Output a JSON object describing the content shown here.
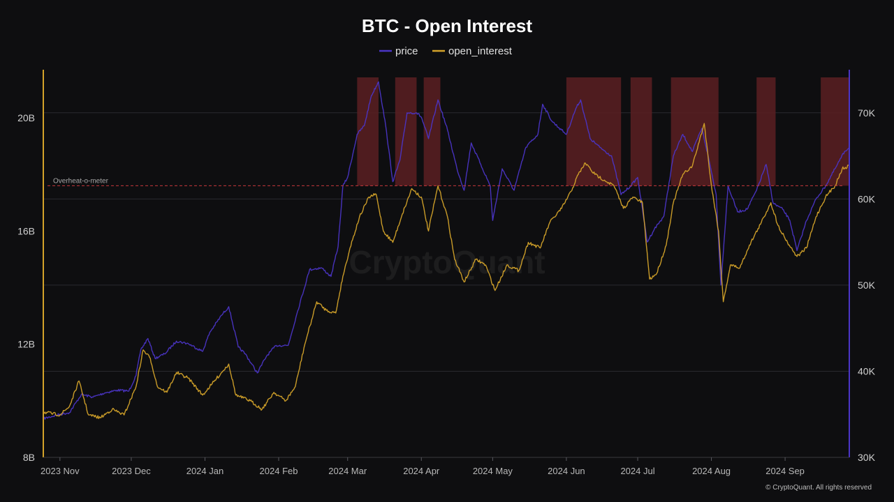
{
  "chart_data": {
    "type": "line",
    "title": "BTC - Open Interest",
    "legend": {
      "placement": "top-center",
      "entries": [
        "price",
        "open_interest"
      ]
    },
    "colors": {
      "price": "#4b35c6",
      "open_interest": "#d4a32a",
      "overheat_band": "#5a1f22",
      "threshold": "#c8383c",
      "background": "#0e0e10",
      "left_axis": "#d4a32a",
      "right_axis": "#4b35c6"
    },
    "x_axis": {
      "range": [
        "2023-10-25",
        "2024-09-28"
      ],
      "ticks": [
        {
          "date": "2023-11-01",
          "label": "2023 Nov"
        },
        {
          "date": "2023-12-01",
          "label": "2023 Dec"
        },
        {
          "date": "2024-01-01",
          "label": "2024 Jan"
        },
        {
          "date": "2024-02-01",
          "label": "2024 Feb"
        },
        {
          "date": "2024-03-01",
          "label": "2024 Mar"
        },
        {
          "date": "2024-04-01",
          "label": "2024 Apr"
        },
        {
          "date": "2024-05-01",
          "label": "2024 May"
        },
        {
          "date": "2024-06-01",
          "label": "2024 Jun"
        },
        {
          "date": "2024-07-01",
          "label": "2024 Jul"
        },
        {
          "date": "2024-08-01",
          "label": "2024 Aug"
        },
        {
          "date": "2024-09-01",
          "label": "2024 Sep"
        }
      ]
    },
    "y_left": {
      "series": "open_interest",
      "range": [
        8000000000,
        21700000000
      ],
      "ticks": [
        {
          "value": 8000000000,
          "label": "8B"
        },
        {
          "value": 12000000000,
          "label": "12B"
        },
        {
          "value": 16000000000,
          "label": "16B"
        },
        {
          "value": 20000000000,
          "label": "20B"
        }
      ]
    },
    "y_right": {
      "series": "price",
      "range": [
        30000,
        75000
      ],
      "ticks": [
        {
          "value": 30000,
          "label": "30K"
        },
        {
          "value": 40000,
          "label": "40K"
        },
        {
          "value": 50000,
          "label": "50K"
        },
        {
          "value": 60000,
          "label": "60K"
        },
        {
          "value": 70000,
          "label": "70K"
        }
      ]
    },
    "grid": true,
    "threshold": {
      "label": "Overheat-o-meter",
      "value": 17600000000
    },
    "overheat_bands": [
      {
        "start": "2024-03-05",
        "end": "2024-03-14"
      },
      {
        "start": "2024-03-21",
        "end": "2024-03-30"
      },
      {
        "start": "2024-04-02",
        "end": "2024-04-09"
      },
      {
        "start": "2024-06-01",
        "end": "2024-06-24"
      },
      {
        "start": "2024-06-28",
        "end": "2024-07-07"
      },
      {
        "start": "2024-07-15",
        "end": "2024-08-04"
      },
      {
        "start": "2024-08-20",
        "end": "2024-08-28"
      },
      {
        "start": "2024-09-16",
        "end": "2024-09-28"
      }
    ],
    "series": [
      {
        "name": "price",
        "axis": "right",
        "points": [
          [
            "2023-10-25",
            34500
          ],
          [
            "2023-11-01",
            35000
          ],
          [
            "2023-11-05",
            35200
          ],
          [
            "2023-11-10",
            37300
          ],
          [
            "2023-11-15",
            37000
          ],
          [
            "2023-11-20",
            37500
          ],
          [
            "2023-11-25",
            37800
          ],
          [
            "2023-11-30",
            37700
          ],
          [
            "2023-12-03",
            39500
          ],
          [
            "2023-12-05",
            42500
          ],
          [
            "2023-12-08",
            43800
          ],
          [
            "2023-12-11",
            41500
          ],
          [
            "2023-12-15",
            42000
          ],
          [
            "2023-12-20",
            43500
          ],
          [
            "2023-12-25",
            43200
          ],
          [
            "2023-12-31",
            42300
          ],
          [
            "2024-01-03",
            44500
          ],
          [
            "2024-01-08",
            46500
          ],
          [
            "2024-01-11",
            47500
          ],
          [
            "2024-01-15",
            42800
          ],
          [
            "2024-01-18",
            42000
          ],
          [
            "2024-01-23",
            39800
          ],
          [
            "2024-01-27",
            41800
          ],
          [
            "2024-01-31",
            43000
          ],
          [
            "2024-02-05",
            43000
          ],
          [
            "2024-02-09",
            47000
          ],
          [
            "2024-02-14",
            51800
          ],
          [
            "2024-02-19",
            52000
          ],
          [
            "2024-02-23",
            51000
          ],
          [
            "2024-02-26",
            54500
          ],
          [
            "2024-02-28",
            61500
          ],
          [
            "2024-03-01",
            62500
          ],
          [
            "2024-03-05",
            67500
          ],
          [
            "2024-03-08",
            68500
          ],
          [
            "2024-03-11",
            72000
          ],
          [
            "2024-03-14",
            73600
          ],
          [
            "2024-03-17",
            68500
          ],
          [
            "2024-03-20",
            62000
          ],
          [
            "2024-03-23",
            64500
          ],
          [
            "2024-03-26",
            70000
          ],
          [
            "2024-03-30",
            70000
          ],
          [
            "2024-04-01",
            69500
          ],
          [
            "2024-04-04",
            67000
          ],
          [
            "2024-04-08",
            71500
          ],
          [
            "2024-04-12",
            68000
          ],
          [
            "2024-04-16",
            63500
          ],
          [
            "2024-04-19",
            61000
          ],
          [
            "2024-04-22",
            66500
          ],
          [
            "2024-04-26",
            64000
          ],
          [
            "2024-04-30",
            61500
          ],
          [
            "2024-05-01",
            57500
          ],
          [
            "2024-05-05",
            63500
          ],
          [
            "2024-05-10",
            61000
          ],
          [
            "2024-05-15",
            66000
          ],
          [
            "2024-05-20",
            67500
          ],
          [
            "2024-05-22",
            71000
          ],
          [
            "2024-05-26",
            69000
          ],
          [
            "2024-05-30",
            68000
          ],
          [
            "2024-06-01",
            67500
          ],
          [
            "2024-06-05",
            70500
          ],
          [
            "2024-06-07",
            71500
          ],
          [
            "2024-06-11",
            67000
          ],
          [
            "2024-06-15",
            66000
          ],
          [
            "2024-06-20",
            65000
          ],
          [
            "2024-06-24",
            60500
          ],
          [
            "2024-06-28",
            61500
          ],
          [
            "2024-07-01",
            62500
          ],
          [
            "2024-07-05",
            55000
          ],
          [
            "2024-07-08",
            56500
          ],
          [
            "2024-07-12",
            58000
          ],
          [
            "2024-07-16",
            65000
          ],
          [
            "2024-07-20",
            67500
          ],
          [
            "2024-07-24",
            65500
          ],
          [
            "2024-07-28",
            68200
          ],
          [
            "2024-07-31",
            64500
          ],
          [
            "2024-08-03",
            60500
          ],
          [
            "2024-08-05",
            50000
          ],
          [
            "2024-08-08",
            61500
          ],
          [
            "2024-08-12",
            58500
          ],
          [
            "2024-08-16",
            58800
          ],
          [
            "2024-08-20",
            61000
          ],
          [
            "2024-08-24",
            64000
          ],
          [
            "2024-08-27",
            59500
          ],
          [
            "2024-08-31",
            58800
          ],
          [
            "2024-09-03",
            57500
          ],
          [
            "2024-09-06",
            54000
          ],
          [
            "2024-09-10",
            57500
          ],
          [
            "2024-09-14",
            60000
          ],
          [
            "2024-09-18",
            61500
          ],
          [
            "2024-09-22",
            63500
          ],
          [
            "2024-09-26",
            65500
          ],
          [
            "2024-09-28",
            66000
          ]
        ]
      },
      {
        "name": "open_interest",
        "axis": "left",
        "points": [
          [
            "2023-10-25",
            9600000000
          ],
          [
            "2023-11-01",
            9500000000
          ],
          [
            "2023-11-05",
            9800000000
          ],
          [
            "2023-11-09",
            10700000000
          ],
          [
            "2023-11-13",
            9500000000
          ],
          [
            "2023-11-18",
            9400000000
          ],
          [
            "2023-11-23",
            9700000000
          ],
          [
            "2023-11-28",
            9500000000
          ],
          [
            "2023-12-03",
            10500000000
          ],
          [
            "2023-12-06",
            11800000000
          ],
          [
            "2023-12-09",
            11500000000
          ],
          [
            "2023-12-12",
            10500000000
          ],
          [
            "2023-12-16",
            10300000000
          ],
          [
            "2023-12-20",
            11000000000
          ],
          [
            "2023-12-25",
            10800000000
          ],
          [
            "2023-12-31",
            10200000000
          ],
          [
            "2024-01-04",
            10600000000
          ],
          [
            "2024-01-08",
            11000000000
          ],
          [
            "2024-01-11",
            11300000000
          ],
          [
            "2024-01-14",
            10200000000
          ],
          [
            "2024-01-20",
            10000000000
          ],
          [
            "2024-01-25",
            9700000000
          ],
          [
            "2024-01-30",
            10300000000
          ],
          [
            "2024-02-04",
            10000000000
          ],
          [
            "2024-02-08",
            10500000000
          ],
          [
            "2024-02-12",
            12000000000
          ],
          [
            "2024-02-17",
            13500000000
          ],
          [
            "2024-02-21",
            13200000000
          ],
          [
            "2024-02-25",
            13100000000
          ],
          [
            "2024-02-28",
            14400000000
          ],
          [
            "2024-03-02",
            15400000000
          ],
          [
            "2024-03-06",
            16500000000
          ],
          [
            "2024-03-10",
            17200000000
          ],
          [
            "2024-03-13",
            17300000000
          ],
          [
            "2024-03-16",
            16000000000
          ],
          [
            "2024-03-20",
            15600000000
          ],
          [
            "2024-03-24",
            16600000000
          ],
          [
            "2024-03-28",
            17500000000
          ],
          [
            "2024-04-01",
            17200000000
          ],
          [
            "2024-04-04",
            16000000000
          ],
          [
            "2024-04-08",
            17600000000
          ],
          [
            "2024-04-12",
            16500000000
          ],
          [
            "2024-04-15",
            15000000000
          ],
          [
            "2024-04-19",
            14200000000
          ],
          [
            "2024-04-24",
            15000000000
          ],
          [
            "2024-04-28",
            14800000000
          ],
          [
            "2024-05-02",
            13900000000
          ],
          [
            "2024-05-07",
            14800000000
          ],
          [
            "2024-05-12",
            14600000000
          ],
          [
            "2024-05-16",
            15600000000
          ],
          [
            "2024-05-21",
            15400000000
          ],
          [
            "2024-05-25",
            16300000000
          ],
          [
            "2024-05-30",
            16800000000
          ],
          [
            "2024-06-03",
            17400000000
          ],
          [
            "2024-06-06",
            18000000000
          ],
          [
            "2024-06-09",
            18400000000
          ],
          [
            "2024-06-13",
            18000000000
          ],
          [
            "2024-06-17",
            17800000000
          ],
          [
            "2024-06-21",
            17600000000
          ],
          [
            "2024-06-25",
            16800000000
          ],
          [
            "2024-06-29",
            17200000000
          ],
          [
            "2024-07-03",
            17000000000
          ],
          [
            "2024-07-06",
            14300000000
          ],
          [
            "2024-07-09",
            14500000000
          ],
          [
            "2024-07-13",
            15500000000
          ],
          [
            "2024-07-16",
            17000000000
          ],
          [
            "2024-07-20",
            18000000000
          ],
          [
            "2024-07-24",
            18300000000
          ],
          [
            "2024-07-29",
            19800000000
          ],
          [
            "2024-08-01",
            17600000000
          ],
          [
            "2024-08-04",
            16000000000
          ],
          [
            "2024-08-06",
            13500000000
          ],
          [
            "2024-08-09",
            14800000000
          ],
          [
            "2024-08-13",
            14700000000
          ],
          [
            "2024-08-17",
            15500000000
          ],
          [
            "2024-08-22",
            16300000000
          ],
          [
            "2024-08-26",
            17000000000
          ],
          [
            "2024-08-29",
            16200000000
          ],
          [
            "2024-09-02",
            15600000000
          ],
          [
            "2024-09-06",
            15100000000
          ],
          [
            "2024-09-10",
            15400000000
          ],
          [
            "2024-09-14",
            16500000000
          ],
          [
            "2024-09-18",
            17200000000
          ],
          [
            "2024-09-22",
            17600000000
          ],
          [
            "2024-09-25",
            18200000000
          ],
          [
            "2024-09-28",
            18300000000
          ]
        ]
      }
    ],
    "watermark": "CryptoQuant",
    "copyright": "© CryptoQuant. All rights reserved"
  }
}
